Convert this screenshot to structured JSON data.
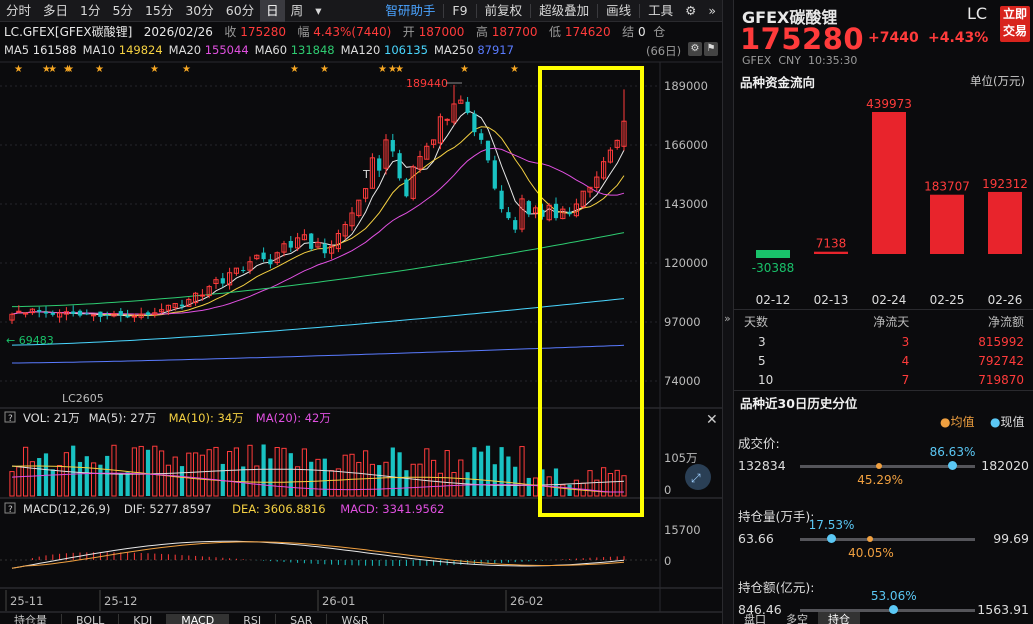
{
  "toolbar": {
    "items": [
      "分时",
      "多日",
      "1分",
      "5分",
      "15分",
      "30分",
      "60分",
      "日",
      "周",
      "▾"
    ],
    "active_index": 7,
    "right_items": [
      "智研助手",
      "F9",
      "前复权",
      "超级叠加",
      "画线",
      "工具"
    ],
    "gear_icon": "gear-icon",
    "expand_icon": "chevron-double-right-icon"
  },
  "info": {
    "symbol": "LC.GFEX[GFEX碳酸锂]",
    "date": "2026/02/26",
    "close_label": "收",
    "close": "175280",
    "range_label": "幅",
    "range": "4.43%(7440)",
    "open_label": "开",
    "open": "187000",
    "high_label": "高",
    "high": "187700",
    "low_label": "低",
    "low": "174620",
    "settle_label": "结",
    "settle": "0",
    "oi_label": "仓"
  },
  "ma": {
    "items": [
      {
        "label": "MA5",
        "value": "161588",
        "color": "#e8e8e8"
      },
      {
        "label": "MA10",
        "value": "149824",
        "color": "#f5d142"
      },
      {
        "label": "MA20",
        "value": "155044",
        "color": "#e050e0"
      },
      {
        "label": "MA60",
        "value": "131848",
        "color": "#2ecc71"
      },
      {
        "label": "MA120",
        "value": "106135",
        "color": "#4ad7ff"
      },
      {
        "label": "MA250",
        "value": "87917",
        "color": "#5a7bff"
      }
    ],
    "days": "(66日)"
  },
  "price_axis": [
    "189000",
    "166000",
    "143000",
    "120000",
    "97000",
    "74000"
  ],
  "annotations": {
    "high": "189440",
    "low": "69483",
    "contract": "LC2605"
  },
  "volume": {
    "label": "VOL: 21万",
    "ma5": "MA(5): 27万",
    "ma10": "MA(10): 34万",
    "ma20": "MA(20): 42万",
    "axis_top": "105万",
    "axis_zero": "0"
  },
  "macd": {
    "label": "MACD(12,26,9)",
    "dif": "DIF: 5277.8597",
    "dea": "DEA: 3606.8816",
    "macd": "MACD: 3341.9562",
    "axis_top": "15700",
    "axis_zero": "0"
  },
  "dates": [
    "25-11",
    "25-12",
    "26-01",
    "26-02"
  ],
  "bottom_tabs": [
    "持仓量",
    "BOLL",
    "KDJ",
    "MACD",
    "RSI",
    "SAR",
    "W&R"
  ],
  "right": {
    "name": "GFEX碳酸锂",
    "code": "LC",
    "quick_trade": [
      "立即",
      "交易"
    ],
    "price": "175280",
    "change": "+7440",
    "change_pct": "+4.43%",
    "exchange": "GFEX",
    "currency": "CNY",
    "time": "10:35:30",
    "flow_title": "品种资金流向",
    "flow_unit": "单位(万元)",
    "flow_bars": [
      {
        "date": "02-12",
        "value": -30388,
        "label": "-30388"
      },
      {
        "date": "02-13",
        "value": 7138,
        "label": "7138"
      },
      {
        "date": "02-24",
        "value": 439973,
        "label": "439973"
      },
      {
        "date": "02-25",
        "value": 183707,
        "label": "183707"
      },
      {
        "date": "02-26",
        "value": 192312,
        "label": "192312"
      }
    ],
    "flow_table": {
      "headers": [
        "天数",
        "净流天",
        "净流额"
      ],
      "rows": [
        [
          "3",
          "3",
          "815992"
        ],
        [
          "5",
          "4",
          "792742"
        ],
        [
          "10",
          "7",
          "719870"
        ]
      ]
    },
    "hist_title": "品种近30日历史分位",
    "legend_avg": "均值",
    "legend_now": "现值",
    "sliders": [
      {
        "title": "成交价:",
        "min": "132834",
        "max": "182020",
        "now": 0.8663,
        "now_label": "86.63%",
        "avg": 0.4529,
        "avg_label": "45.29%"
      },
      {
        "title": "持仓量(万手):",
        "min": "63.66",
        "max": "99.69",
        "now": 0.1753,
        "now_label": "17.53%",
        "avg": 0.4005,
        "avg_label": "40.05%"
      },
      {
        "title": "持仓额(亿元):",
        "min": "846.46",
        "max": "1563.91",
        "now": 0.5306,
        "now_label": "53.06%",
        "avg": 0.5,
        "avg_label": ""
      }
    ],
    "bottom_tabs": [
      "盘口",
      "多空",
      "持仓"
    ]
  },
  "colors": {
    "up": "#ff3b3b",
    "down": "#19c2c2",
    "highlight": "#ffff00"
  }
}
